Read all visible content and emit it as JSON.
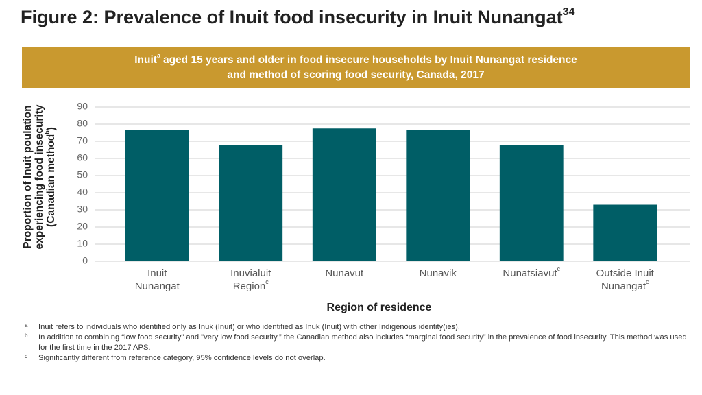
{
  "chart_data": {
    "type": "bar",
    "title": "Figure 2: Prevalence of Inuit food insecurity in Inuit Nunangat",
    "title_ref": "34",
    "subtitle_lines": [
      [
        "Inuit",
        "a",
        "aged 15 years and older in food insecure households by Inuit Nunangat residence"
      ],
      [
        "and method of scoring food security, Canada, 2017"
      ]
    ],
    "ylabel_lines": [
      [
        "Proportion of Inuit poulation"
      ],
      [
        "experiencing food insecurity"
      ],
      [
        "(Canadian method",
        "b",
        ")"
      ]
    ],
    "xlabel": "Region of residence",
    "categories": [
      "Inuit Nunangat",
      "Inuvialuit Region",
      "Nunavut",
      "Nunavik",
      "Nunatsiavut",
      "Outside Inuit Nunangat"
    ],
    "category_marks": [
      null,
      "c",
      null,
      null,
      "c",
      "c"
    ],
    "values": [
      76.5,
      68,
      77.5,
      76.5,
      68,
      33
    ],
    "color": "#005e66",
    "ylim": [
      0,
      90
    ],
    "yticks": [
      0,
      10,
      20,
      30,
      40,
      50,
      60,
      70,
      80,
      90
    ],
    "grid": true,
    "footnotes": [
      {
        "mark": "a",
        "text": "Inuit refers to individuals who identified only as Inuk (Inuit) or who identified as Inuk (Inuit) with other Indigenous identity(ies)."
      },
      {
        "mark": "b",
        "text": "In addition to combining “low food security\" and \"very low food security,” the Canadian method also includes “marginal food security” in the prevalence of food insecurity. This method was used for the first time in the 2017 APS."
      },
      {
        "mark": "c",
        "text": "Significantly different from reference category, 95% confidence levels do not overlap."
      }
    ]
  }
}
